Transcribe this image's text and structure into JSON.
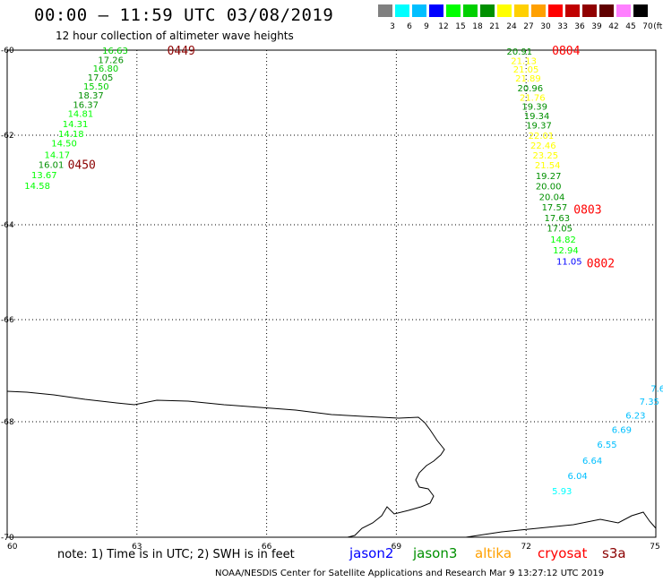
{
  "title": "00:00 – 11:59 UTC 03/08/2019",
  "subtitle": "12 hour collection of altimeter wave heights",
  "legend": {
    "colors": [
      "#808080",
      "#00ffff",
      "#00bfff",
      "#0000ff",
      "#00ff00",
      "#00d000",
      "#009000",
      "#ffff00",
      "#ffd000",
      "#ffa000",
      "#ff0000",
      "#c00000",
      "#900000",
      "#600000",
      "#ff80ff",
      "#000000"
    ],
    "labels": [
      "3",
      "6",
      "9",
      "12",
      "15",
      "18",
      "21",
      "24",
      "27",
      "30",
      "33",
      "36",
      "39",
      "42",
      "45",
      "70",
      "(ft)"
    ]
  },
  "axes": {
    "lon_labels": [
      "60",
      "63",
      "66",
      "69",
      "72",
      "75"
    ],
    "lat_labels": [
      "-60",
      "-62",
      "-64",
      "-66",
      "-68",
      "-70"
    ]
  },
  "tracks": [
    {
      "id": "0449",
      "label_color": "#8b0000",
      "label_lon": 63.7,
      "label_lat": -60.0
    },
    {
      "id": "0450",
      "label_color": "#8b0000",
      "label_lon": 61.4,
      "label_lat": -62.65
    },
    {
      "id": "0804",
      "label_color": "#ff0000",
      "label_lon": 72.6,
      "label_lat": -60.0
    },
    {
      "id": "0803",
      "label_color": "#ff0000",
      "label_lon": 73.1,
      "label_lat": -63.65
    },
    {
      "id": "0802",
      "label_color": "#ff0000",
      "label_lon": 73.4,
      "label_lat": -64.8
    }
  ],
  "wave_points": [
    {
      "v": "16.63",
      "c": "#00d000",
      "lon": 62.2,
      "lat": -60.0
    },
    {
      "v": "17.26",
      "c": "#009000",
      "lon": 62.1,
      "lat": -60.22
    },
    {
      "v": "16.80",
      "c": "#00d000",
      "lon": 61.98,
      "lat": -60.42
    },
    {
      "v": "17.05",
      "c": "#009000",
      "lon": 61.86,
      "lat": -60.63
    },
    {
      "v": "15.50",
      "c": "#00d000",
      "lon": 61.76,
      "lat": -60.84
    },
    {
      "v": "18.37",
      "c": "#009000",
      "lon": 61.64,
      "lat": -61.05
    },
    {
      "v": "16.37",
      "c": "#009000",
      "lon": 61.52,
      "lat": -61.27
    },
    {
      "v": "14.81",
      "c": "#00ff00",
      "lon": 61.4,
      "lat": -61.48
    },
    {
      "v": "14.31",
      "c": "#00ff00",
      "lon": 61.28,
      "lat": -61.73
    },
    {
      "v": "14.18",
      "c": "#00ff00",
      "lon": 61.18,
      "lat": -61.96
    },
    {
      "v": "14.50",
      "c": "#00ff00",
      "lon": 61.02,
      "lat": -62.17
    },
    {
      "v": "14.17",
      "c": "#00ff00",
      "lon": 60.86,
      "lat": -62.43
    },
    {
      "v": "16.01",
      "c": "#009000",
      "lon": 60.72,
      "lat": -62.65
    },
    {
      "v": "13.67",
      "c": "#00ff00",
      "lon": 60.56,
      "lat": -62.88
    },
    {
      "v": "14.58",
      "c": "#00ff00",
      "lon": 60.4,
      "lat": -63.12
    },
    {
      "v": "20.91",
      "c": "#009000",
      "lon": 71.55,
      "lat": -60.02
    },
    {
      "v": "21.13",
      "c": "#ffff00",
      "lon": 71.65,
      "lat": -60.24
    },
    {
      "v": "21.05",
      "c": "#ffff00",
      "lon": 71.7,
      "lat": -60.44
    },
    {
      "v": "21.89",
      "c": "#ffff00",
      "lon": 71.75,
      "lat": -60.65
    },
    {
      "v": "20.96",
      "c": "#009000",
      "lon": 71.8,
      "lat": -60.88
    },
    {
      "v": "21.76",
      "c": "#ffff00",
      "lon": 71.85,
      "lat": -61.1
    },
    {
      "v": "19.39",
      "c": "#009000",
      "lon": 71.9,
      "lat": -61.32
    },
    {
      "v": "19.34",
      "c": "#009000",
      "lon": 71.95,
      "lat": -61.54
    },
    {
      "v": "19.37",
      "c": "#009000",
      "lon": 72.0,
      "lat": -61.76
    },
    {
      "v": "22.01",
      "c": "#ffff00",
      "lon": 72.05,
      "lat": -62.0
    },
    {
      "v": "22.46",
      "c": "#ffff00",
      "lon": 72.1,
      "lat": -62.22
    },
    {
      "v": "23.25",
      "c": "#ffff00",
      "lon": 72.15,
      "lat": -62.44
    },
    {
      "v": "21.54",
      "c": "#ffff00",
      "lon": 72.2,
      "lat": -62.66
    },
    {
      "v": "19.27",
      "c": "#009000",
      "lon": 72.22,
      "lat": -62.9
    },
    {
      "v": "20.00",
      "c": "#009000",
      "lon": 72.22,
      "lat": -63.13
    },
    {
      "v": "20.04",
      "c": "#009000",
      "lon": 72.3,
      "lat": -63.37
    },
    {
      "v": "17.57",
      "c": "#009000",
      "lon": 72.36,
      "lat": -63.6
    },
    {
      "v": "17.63",
      "c": "#009000",
      "lon": 72.42,
      "lat": -63.84
    },
    {
      "v": "17.05",
      "c": "#009000",
      "lon": 72.48,
      "lat": -64.07
    },
    {
      "v": "14.82",
      "c": "#00ff00",
      "lon": 72.56,
      "lat": -64.3
    },
    {
      "v": "12.94",
      "c": "#00ff00",
      "lon": 72.62,
      "lat": -64.53
    },
    {
      "v": "11.05",
      "c": "#0000ff",
      "lon": 72.7,
      "lat": -64.76
    },
    {
      "v": "7.6",
      "c": "#00bfff",
      "lon": 74.88,
      "lat": -67.34
    },
    {
      "v": "7.35",
      "c": "#00bfff",
      "lon": 74.62,
      "lat": -67.6
    },
    {
      "v": "6.23",
      "c": "#00bfff",
      "lon": 74.3,
      "lat": -67.87
    },
    {
      "v": "6.69",
      "c": "#00bfff",
      "lon": 73.98,
      "lat": -68.13
    },
    {
      "v": "6.55",
      "c": "#00bfff",
      "lon": 73.64,
      "lat": -68.39
    },
    {
      "v": "6.64",
      "c": "#00bfff",
      "lon": 73.3,
      "lat": -68.67
    },
    {
      "v": "6.04",
      "c": "#00bfff",
      "lon": 72.96,
      "lat": -68.93
    },
    {
      "v": "5.93",
      "c": "#00ffff",
      "lon": 72.6,
      "lat": -69.19
    }
  ],
  "note": "note: 1) Time is in UTC; 2) SWH is in feet",
  "satellites": [
    {
      "name": "jason2",
      "color": "#0000ff"
    },
    {
      "name": "jason3",
      "color": "#009000"
    },
    {
      "name": "altika",
      "color": "#ffa000"
    },
    {
      "name": "cryosat",
      "color": "#ff0000"
    },
    {
      "name": "s3a",
      "color": "#8b0000"
    }
  ],
  "credit": "NOAA/NESDIS Center for Satellite Applications and Research   Mar  9 13:27:12 UTC 2019"
}
